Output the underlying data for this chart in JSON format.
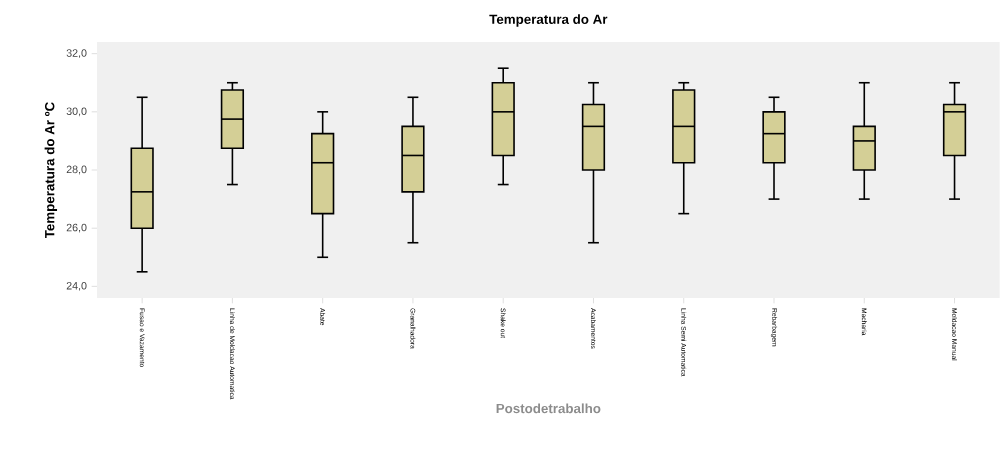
{
  "chart_data": {
    "type": "box",
    "title": "Temperatura do Ar",
    "xlabel": "Postodetrabalho",
    "ylabel": "Temperatura do Ar ºC",
    "categories": [
      "Fusao e Vazamento",
      "Linha de Moldacao Automatica",
      "Abate",
      "Granalhadora",
      "Shake out",
      "Acabamentos",
      "Linha Semi Automatica",
      "Rebarbagem",
      "Macharia",
      "Moldacao Manual"
    ],
    "series": [
      {
        "color": "#d4cf96",
        "boxes": [
          {
            "low": 24.5,
            "q1": 26,
            "median": 27.25,
            "q3": 28.75,
            "high": 30.5
          },
          {
            "low": 27.5,
            "q1": 28.75,
            "median": 29.75,
            "q3": 30.75,
            "high": 31
          },
          {
            "low": 25,
            "q1": 26.5,
            "median": 28.25,
            "q3": 29.25,
            "high": 30
          },
          {
            "low": 25.5,
            "q1": 27.25,
            "median": 28.5,
            "q3": 29.5,
            "high": 30.5
          },
          {
            "low": 27.5,
            "q1": 28.5,
            "median": 30,
            "q3": 31,
            "high": 31.5
          },
          {
            "low": 25.5,
            "q1": 28,
            "median": 29.5,
            "q3": 30.25,
            "high": 31
          },
          {
            "low": 26.5,
            "q1": 28.25,
            "median": 29.5,
            "q3": 30.75,
            "high": 31
          },
          {
            "low": 27,
            "q1": 28.25,
            "median": 29.25,
            "q3": 30,
            "high": 30.5
          },
          {
            "low": 27,
            "q1": 28,
            "median": 29,
            "q3": 29.5,
            "high": 31
          },
          {
            "low": 27,
            "q1": 28.5,
            "median": 30,
            "q3": 30.25,
            "high": 31
          }
        ]
      }
    ],
    "ylim": [
      23.6,
      32.4
    ],
    "yticks": [
      {
        "value": 24,
        "label": "24,0"
      },
      {
        "value": 26,
        "label": "26,0"
      },
      {
        "value": 28,
        "label": "28,0"
      },
      {
        "value": 30,
        "label": "30,0"
      },
      {
        "value": 32,
        "label": "32,0"
      }
    ],
    "grid": false
  }
}
